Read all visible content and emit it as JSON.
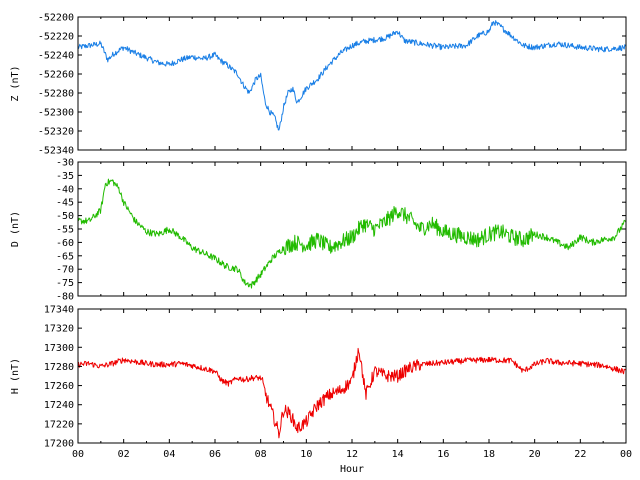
{
  "chart_data": [
    {
      "type": "line",
      "ylabel": "Z (nT)",
      "ylim": [
        -52340,
        -52200
      ],
      "yticks": [
        -52340,
        -52320,
        -52300,
        -52280,
        -52260,
        -52240,
        -52220,
        -52200
      ],
      "xlim": [
        0,
        24
      ],
      "color": "#1a7fe6",
      "series": [
        {
          "x": [
            0,
            0.5,
            1,
            1.3,
            1.6,
            2,
            2.5,
            3,
            3.5,
            4,
            4.5,
            5,
            5.5,
            6,
            6.2,
            6.5,
            7,
            7.2,
            7.5,
            7.8,
            8,
            8.2,
            8.4,
            8.6,
            8.8,
            9,
            9.2,
            9.4,
            9.6,
            10,
            10.5,
            11,
            11.5,
            12,
            12.5,
            13,
            13.5,
            14,
            14.3,
            15,
            16,
            17,
            17.5,
            18,
            18.2,
            18.5,
            19,
            19.5,
            20,
            21,
            22,
            23,
            24
          ],
          "y": [
            -52232,
            -52230,
            -52228,
            -52245,
            -52238,
            -52232,
            -52238,
            -52243,
            -52248,
            -52250,
            -52245,
            -52242,
            -52244,
            -52240,
            -52245,
            -52250,
            -52260,
            -52270,
            -52280,
            -52265,
            -52262,
            -52290,
            -52300,
            -52305,
            -52320,
            -52295,
            -52280,
            -52275,
            -52290,
            -52275,
            -52265,
            -52250,
            -52238,
            -52230,
            -52226,
            -52224,
            -52222,
            -52215,
            -52225,
            -52228,
            -52232,
            -52230,
            -52220,
            -52215,
            -52205,
            -52210,
            -52220,
            -52230,
            -52232,
            -52228,
            -52232,
            -52234,
            -52232
          ]
        }
      ]
    },
    {
      "type": "line",
      "ylabel": "D (nT)",
      "ylim": [
        -80,
        -30
      ],
      "yticks": [
        -80,
        -75,
        -70,
        -65,
        -60,
        -55,
        -50,
        -45,
        -40,
        -35,
        -30
      ],
      "xlim": [
        0,
        24
      ],
      "color": "#22bb00",
      "series": [
        {
          "x": [
            0,
            0.5,
            1,
            1.2,
            1.5,
            1.8,
            2,
            2.5,
            3,
            3.5,
            4,
            4.5,
            5,
            5.5,
            6,
            6.5,
            7,
            7.3,
            7.6,
            8,
            8.5,
            9,
            9.5,
            10,
            10.5,
            11,
            11.5,
            12,
            12.5,
            13,
            13.5,
            14,
            14.5,
            15,
            15.5,
            16,
            16.5,
            17,
            17.5,
            18,
            18.5,
            19,
            19.5,
            20,
            20.5,
            21,
            21.5,
            22,
            22.5,
            23,
            23.5,
            24
          ],
          "y": [
            -52,
            -52,
            -48,
            -38,
            -37,
            -40,
            -45,
            -52,
            -56,
            -57,
            -55,
            -58,
            -62,
            -64,
            -66,
            -69,
            -70,
            -75,
            -76,
            -72,
            -66,
            -62,
            -60,
            -61,
            -59,
            -62,
            -60,
            -58,
            -53,
            -55,
            -52,
            -48,
            -51,
            -55,
            -53,
            -56,
            -57,
            -58,
            -59,
            -57,
            -56,
            -58,
            -59,
            -57,
            -58,
            -60,
            -62,
            -58,
            -60,
            -59,
            -58,
            -52
          ]
        }
      ]
    },
    {
      "type": "line",
      "ylabel": "H (nT)",
      "ylim": [
        17200,
        17340
      ],
      "yticks": [
        17200,
        17220,
        17240,
        17260,
        17280,
        17300,
        17320,
        17340
      ],
      "xlim": [
        0,
        24
      ],
      "xticks": [
        "00",
        "02",
        "04",
        "06",
        "08",
        "10",
        "12",
        "14",
        "16",
        "18",
        "20",
        "22",
        "00"
      ],
      "xlabel": "Hour",
      "color": "#ee0000",
      "series": [
        {
          "x": [
            0,
            0.5,
            1,
            1.5,
            2,
            2.5,
            3,
            3.5,
            4,
            4.5,
            5,
            5.5,
            6,
            6.3,
            6.6,
            7,
            7.3,
            7.6,
            8,
            8.3,
            8.6,
            8.8,
            9,
            9.3,
            9.6,
            10,
            10.5,
            11,
            11.5,
            12,
            12.3,
            12.6,
            13,
            13.5,
            14,
            14.5,
            15,
            16,
            17,
            18,
            19,
            19.5,
            20,
            20.5,
            21,
            22,
            23,
            24
          ],
          "y": [
            17282,
            17283,
            17280,
            17283,
            17287,
            17285,
            17283,
            17282,
            17282,
            17283,
            17281,
            17278,
            17275,
            17265,
            17262,
            17268,
            17266,
            17268,
            17268,
            17245,
            17225,
            17210,
            17235,
            17230,
            17215,
            17222,
            17240,
            17250,
            17255,
            17265,
            17300,
            17250,
            17275,
            17270,
            17270,
            17278,
            17282,
            17284,
            17286,
            17287,
            17286,
            17275,
            17282,
            17286,
            17284,
            17283,
            17281,
            17274
          ]
        }
      ]
    }
  ]
}
